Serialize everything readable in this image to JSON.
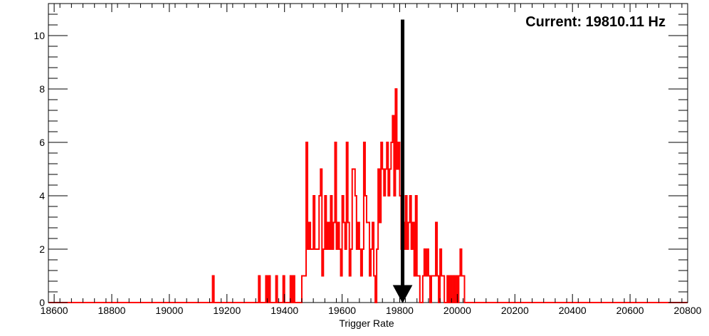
{
  "chart_data": {
    "type": "histogram",
    "title": "",
    "xlabel": "Trigger Rate",
    "ylabel": "",
    "xlim": [
      18580,
      20800
    ],
    "ylim": [
      0,
      11.2
    ],
    "xticks": [
      18600,
      18800,
      19000,
      19200,
      19400,
      19600,
      19800,
      20000,
      20200,
      20400,
      20600,
      20800
    ],
    "xtick_labels": [
      "18600",
      "18800",
      "19000",
      "19200",
      "19400",
      "19600",
      "19800",
      "20000",
      "20200",
      "20400",
      "20600",
      "20800"
    ],
    "yticks": [
      0,
      2,
      4,
      6,
      8,
      10
    ],
    "ytick_labels": [
      "0",
      "2",
      "4",
      "6",
      "8",
      "10"
    ],
    "grid": false,
    "colors": {
      "series": "#ff0000",
      "marker": "#000000",
      "frame": "#000000"
    },
    "bin_width": 5,
    "series": [
      {
        "bins": [
          [
            19150,
            1
          ],
          [
            19310,
            1
          ],
          [
            19335,
            1
          ],
          [
            19345,
            1
          ],
          [
            19370,
            1
          ],
          [
            19395,
            1
          ],
          [
            19420,
            1
          ],
          [
            19430,
            1
          ],
          [
            19460,
            1
          ],
          [
            19465,
            1
          ],
          [
            19470,
            1
          ],
          [
            19475,
            6
          ],
          [
            19480,
            2
          ],
          [
            19485,
            3
          ],
          [
            19490,
            2
          ],
          [
            19495,
            2
          ],
          [
            19500,
            4
          ],
          [
            19505,
            2
          ],
          [
            19510,
            2
          ],
          [
            19515,
            2
          ],
          [
            19520,
            4
          ],
          [
            19525,
            5
          ],
          [
            19530,
            1
          ],
          [
            19535,
            2
          ],
          [
            19540,
            4
          ],
          [
            19545,
            2
          ],
          [
            19550,
            3
          ],
          [
            19555,
            2
          ],
          [
            19560,
            4
          ],
          [
            19565,
            2
          ],
          [
            19570,
            3
          ],
          [
            19575,
            6
          ],
          [
            19580,
            2
          ],
          [
            19585,
            3
          ],
          [
            19590,
            2
          ],
          [
            19595,
            1
          ],
          [
            19600,
            4
          ],
          [
            19605,
            3
          ],
          [
            19610,
            2
          ],
          [
            19615,
            6
          ],
          [
            19620,
            3
          ],
          [
            19625,
            1
          ],
          [
            19630,
            2
          ],
          [
            19635,
            5
          ],
          [
            19640,
            5
          ],
          [
            19645,
            4
          ],
          [
            19650,
            2
          ],
          [
            19655,
            3
          ],
          [
            19660,
            2
          ],
          [
            19665,
            1
          ],
          [
            19670,
            2
          ],
          [
            19675,
            6
          ],
          [
            19680,
            4
          ],
          [
            19685,
            3
          ],
          [
            19690,
            3
          ],
          [
            19695,
            1
          ],
          [
            19700,
            2
          ],
          [
            19705,
            3
          ],
          [
            19710,
            1
          ],
          [
            19715,
            0
          ],
          [
            19720,
            2
          ],
          [
            19725,
            5
          ],
          [
            19730,
            3
          ],
          [
            19735,
            6
          ],
          [
            19740,
            5
          ],
          [
            19745,
            4
          ],
          [
            19750,
            5
          ],
          [
            19755,
            6
          ],
          [
            19760,
            4
          ],
          [
            19765,
            5
          ],
          [
            19770,
            6
          ],
          [
            19775,
            7
          ],
          [
            19780,
            4
          ],
          [
            19785,
            8
          ],
          [
            19790,
            5
          ],
          [
            19795,
            6
          ],
          [
            19800,
            4
          ],
          [
            19805,
            2
          ],
          [
            19810,
            3
          ],
          [
            19815,
            2
          ],
          [
            19820,
            4
          ],
          [
            19825,
            2
          ],
          [
            19830,
            3
          ],
          [
            19835,
            4
          ],
          [
            19840,
            2
          ],
          [
            19845,
            3
          ],
          [
            19850,
            1
          ],
          [
            19855,
            4
          ],
          [
            19860,
            1
          ],
          [
            19865,
            1
          ],
          [
            19870,
            0
          ],
          [
            19875,
            0
          ],
          [
            19880,
            1
          ],
          [
            19885,
            2
          ],
          [
            19890,
            1
          ],
          [
            19895,
            2
          ],
          [
            19900,
            1
          ],
          [
            19905,
            0
          ],
          [
            19910,
            1
          ],
          [
            19915,
            1
          ],
          [
            19920,
            1
          ],
          [
            19925,
            3
          ],
          [
            19930,
            1
          ],
          [
            19935,
            0
          ],
          [
            19940,
            2
          ],
          [
            19945,
            1
          ],
          [
            19950,
            1
          ],
          [
            19955,
            0
          ],
          [
            19960,
            0
          ],
          [
            19965,
            1
          ],
          [
            19970,
            0
          ],
          [
            19975,
            1
          ],
          [
            19980,
            0
          ],
          [
            19985,
            1
          ],
          [
            19990,
            0
          ],
          [
            19995,
            1
          ],
          [
            20000,
            0
          ],
          [
            20005,
            1
          ],
          [
            20010,
            2
          ],
          [
            20015,
            1
          ],
          [
            20020,
            1
          ],
          [
            20025,
            0
          ]
        ]
      }
    ],
    "marker": {
      "x": 19810.11,
      "y_top": 10.6
    },
    "annotations": [
      "Current: 19810.11 Hz"
    ]
  }
}
